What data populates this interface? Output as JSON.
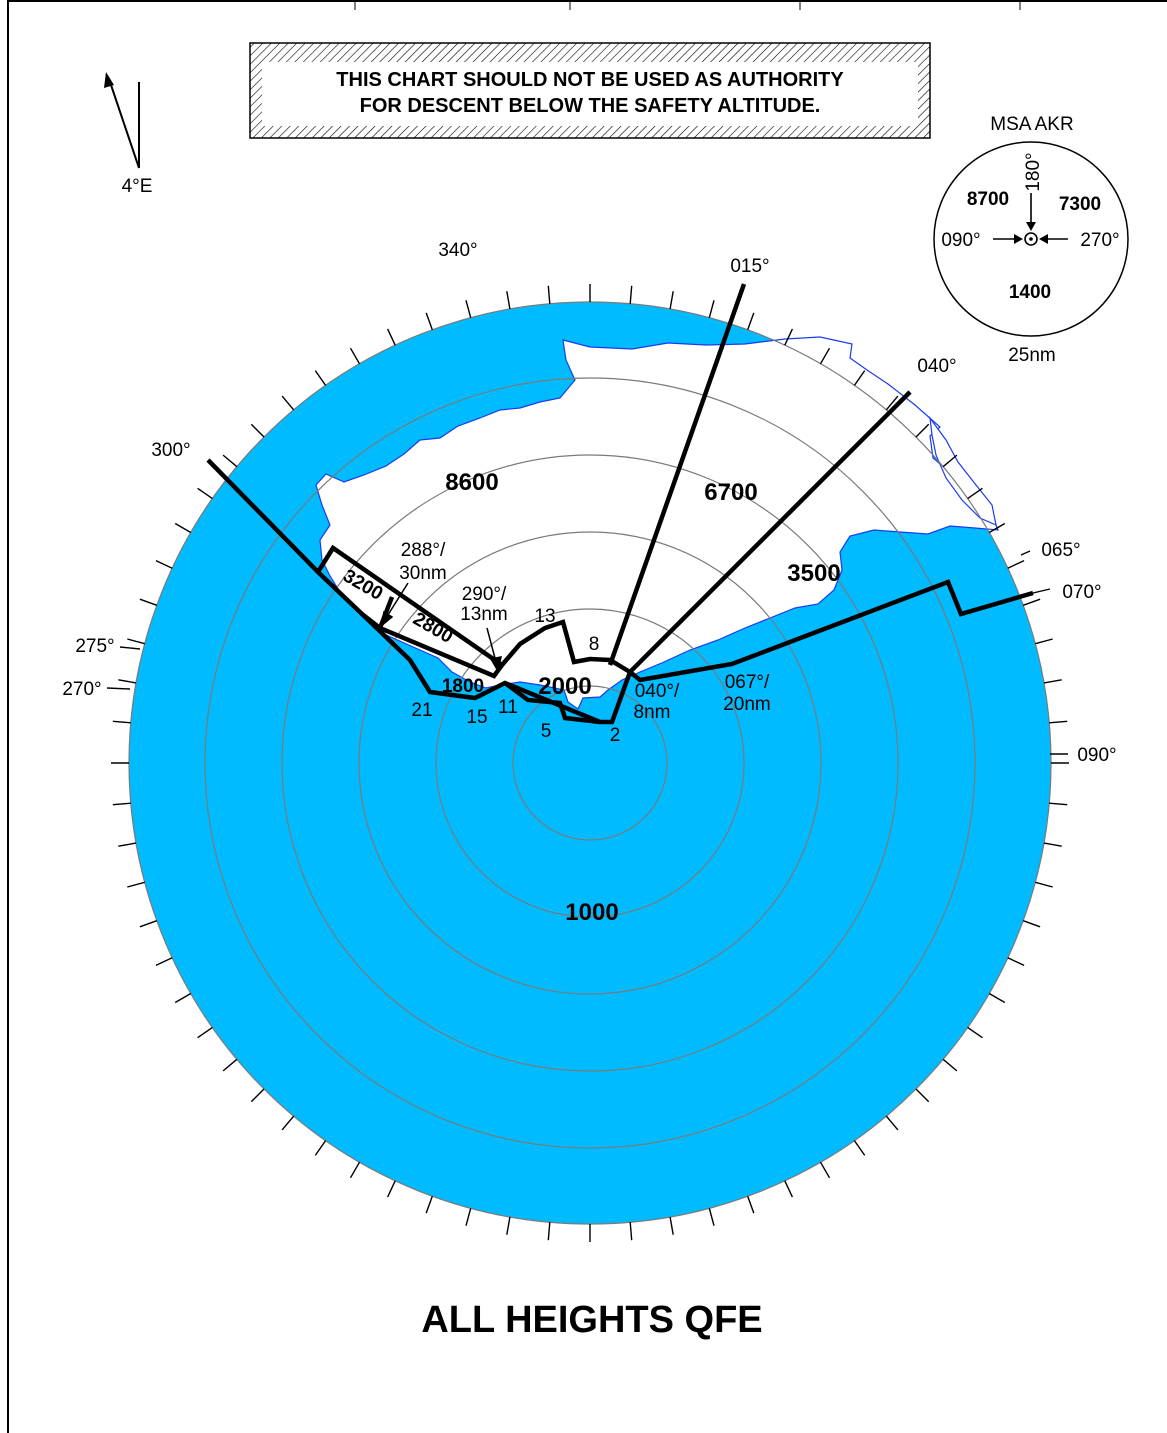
{
  "warning": {
    "line1": "THIS CHART SHOULD NOT BE USED AS AUTHORITY",
    "line2": "FOR DESCENT BELOW THE SAFETY ALTITUDE."
  },
  "north_arrow": {
    "variation": "4°E"
  },
  "msa": {
    "title": "MSA AKR",
    "radius_label": "25nm",
    "sector_nw": "8700",
    "sector_ne": "7300",
    "sector_s": "1400",
    "bearing_top": "180°",
    "bearing_left": "090°",
    "bearing_right": "270°"
  },
  "bearings": {
    "b340": "340°",
    "b015": "015°",
    "b040": "040°",
    "b300": "300°",
    "b065": "065°",
    "b070": "070°",
    "b275": "275°",
    "b270": "270°",
    "b090": "090°"
  },
  "sector_altitudes": {
    "a8600": "8600",
    "a6700": "6700",
    "a3500": "3500",
    "a3200": "3200",
    "a2800": "2800",
    "a2000": "2000",
    "a1800": "1800",
    "a1000": "1000"
  },
  "fixes": {
    "f288_1": "288°/",
    "f288_2": "30nm",
    "f290_1": "290°/",
    "f290_2": "13nm",
    "f040_1": "040°/",
    "f040_2": "8nm",
    "f067_1": "067°/",
    "f067_2": "20nm"
  },
  "range_numbers": {
    "r13": "13",
    "r8": "8",
    "r21": "21",
    "r15": "15",
    "r11": "11",
    "r5": "5",
    "r2": "2"
  },
  "footer": "ALL HEIGHTS QFE",
  "colors": {
    "sea": "#00bbff",
    "land": "#ffffff",
    "coast": "#1a3cf0",
    "ring": "#7a7a7a",
    "boundary": "#000000"
  }
}
